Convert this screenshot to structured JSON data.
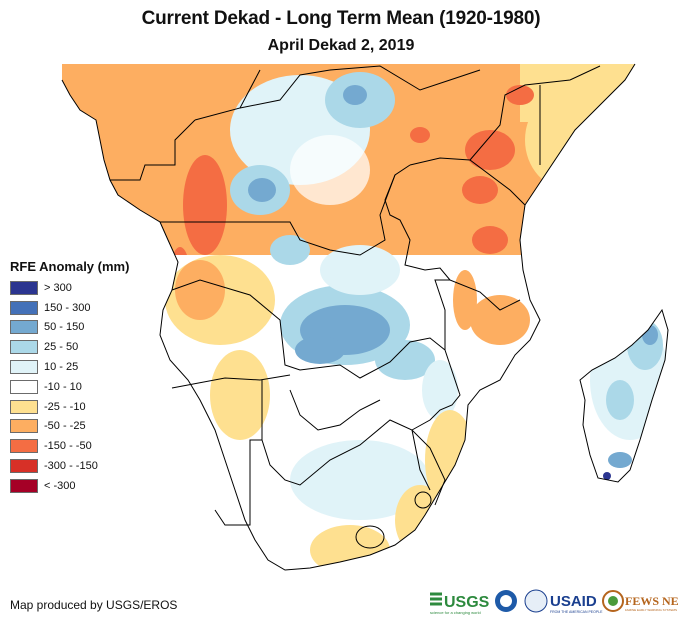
{
  "header": {
    "title": "Current Dekad - Long Term Mean (1920-1980)",
    "subtitle": "April Dekad 2, 2019"
  },
  "map": {
    "region": "Southern and Eastern Africa",
    "variable": "RFE Anomaly",
    "units": "mm",
    "colors": {
      "land_neutral": "#ffffff",
      "border": "#000000",
      "ocean": "#ffffff"
    }
  },
  "legend": {
    "title": "RFE Anomaly (mm)",
    "items": [
      {
        "label": "> 300",
        "color": "#2b3590"
      },
      {
        "label": "150 - 300",
        "color": "#4471b8"
      },
      {
        "label": "50 - 150",
        "color": "#74a9d0"
      },
      {
        "label": "25 - 50",
        "color": "#abd8e8"
      },
      {
        "label": "10 - 25",
        "color": "#e0f3f8"
      },
      {
        "label": "-10 - 10",
        "color": "#ffffff"
      },
      {
        "label": "-25 - -10",
        "color": "#fee090"
      },
      {
        "label": "-50 - -25",
        "color": "#fdae61"
      },
      {
        "label": "-150 - -50",
        "color": "#f46d43"
      },
      {
        "label": "-300 - -150",
        "color": "#d73027"
      },
      {
        "label": "< -300",
        "color": "#a50026"
      }
    ]
  },
  "footer": {
    "credit": "Map produced by USGS/EROS",
    "logos": [
      {
        "name": "USGS",
        "tagline": "science for a changing world",
        "color": "#2d8a3e"
      },
      {
        "name": "NOAA",
        "color": "#1e5aa8"
      },
      {
        "name": "USAID",
        "tagline": "FROM THE AMERICAN PEOPLE",
        "color": "#1a3f8f"
      },
      {
        "name": "FEWS NET",
        "tagline": "FAMINE EARLY WARNING SYSTEMS NETWORK",
        "color": "#b5651d"
      }
    ]
  }
}
